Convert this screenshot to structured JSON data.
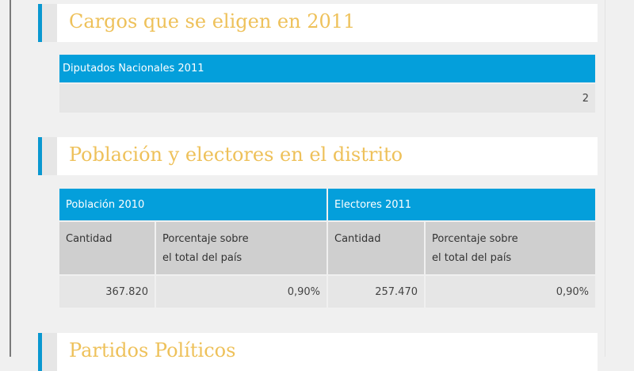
{
  "sections": [
    {
      "title": "Cargos que se eligen en 2011"
    },
    {
      "title": "Población y electores en el distrito"
    },
    {
      "title": "Partidos Políticos"
    }
  ],
  "cargos": {
    "header": "Diputados Nacionales 2011",
    "value": "2"
  },
  "poblacion": {
    "groups": [
      {
        "header": "Población 2010",
        "col1": "Cantidad",
        "col2_line1": "Porcentaje sobre",
        "col2_line2": "el total del país",
        "cantidad": "367.820",
        "porcentaje": "0,90%"
      },
      {
        "header": "Electores 2011",
        "col1": "Cantidad",
        "col2_line1": "Porcentaje sobre",
        "col2_line2": "el total del país",
        "cantidad": "257.470",
        "porcentaje": "0,90%"
      }
    ]
  },
  "colors": {
    "accent": "#049fdb",
    "title": "#eec15a"
  }
}
